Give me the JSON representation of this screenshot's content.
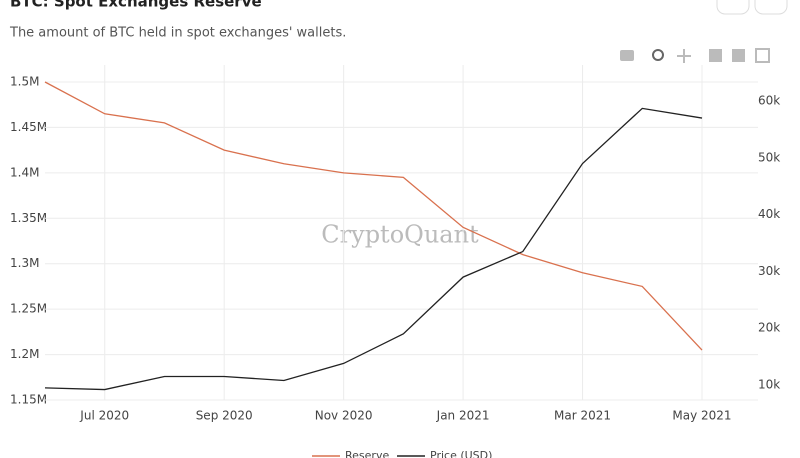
{
  "chart_data": {
    "type": "line",
    "title": "BTC: Spot Exchanges Reserve",
    "subtitle": "The amount of BTC held in spot exchanges' wallets.",
    "watermark": "CryptoQuant",
    "x": [
      "2020-06",
      "2020-07",
      "2020-08",
      "2020-09",
      "2020-10",
      "2020-11",
      "2020-12",
      "2021-01",
      "2021-02",
      "2021-03",
      "2021-04",
      "2021-05"
    ],
    "xticks": [
      {
        "value": "2020-07",
        "label": "Jul 2020"
      },
      {
        "value": "2020-09",
        "label": "Sep 2020"
      },
      {
        "value": "2020-11",
        "label": "Nov 2020"
      },
      {
        "value": "2021-01",
        "label": "Jan 2021"
      },
      {
        "value": "2021-03",
        "label": "Mar 2021"
      },
      {
        "value": "2021-05",
        "label": "May 2021"
      }
    ],
    "xlim": [
      "2020-06",
      "2021-05"
    ],
    "ylim": [
      1150000,
      1500000
    ],
    "yticks": [
      {
        "value": 1150000,
        "label": "1.15M"
      },
      {
        "value": 1200000,
        "label": "1.2M"
      },
      {
        "value": 1250000,
        "label": "1.25M"
      },
      {
        "value": 1300000,
        "label": "1.3M"
      },
      {
        "value": 1350000,
        "label": "1.35M"
      },
      {
        "value": 1400000,
        "label": "1.4M"
      },
      {
        "value": 1450000,
        "label": "1.45M"
      },
      {
        "value": 1500000,
        "label": "1.5M"
      }
    ],
    "y2lim": [
      7360,
      63350
    ],
    "y2ticks": [
      {
        "value": 10000,
        "label": "10k"
      },
      {
        "value": 20000,
        "label": "20k"
      },
      {
        "value": 30000,
        "label": "30k"
      },
      {
        "value": 40000,
        "label": "40k"
      },
      {
        "value": 50000,
        "label": "50k"
      },
      {
        "value": 60000,
        "label": "60k"
      }
    ],
    "grid": true,
    "legend": "bottom",
    "series": [
      {
        "name": "Reserve",
        "color": "#d9714e",
        "values": [
          1500000,
          1465000,
          1455000,
          1425000,
          1410000,
          1400000,
          1395000,
          1340000,
          1310000,
          1290000,
          1275000,
          1205000
        ]
      },
      {
        "name": "Price (USD)",
        "color": "#222222",
        "axis": "y2",
        "values": [
          9500,
          9200,
          11500,
          11500,
          10800,
          13800,
          19000,
          29000,
          33500,
          49000,
          58700,
          57000
        ]
      }
    ]
  }
}
